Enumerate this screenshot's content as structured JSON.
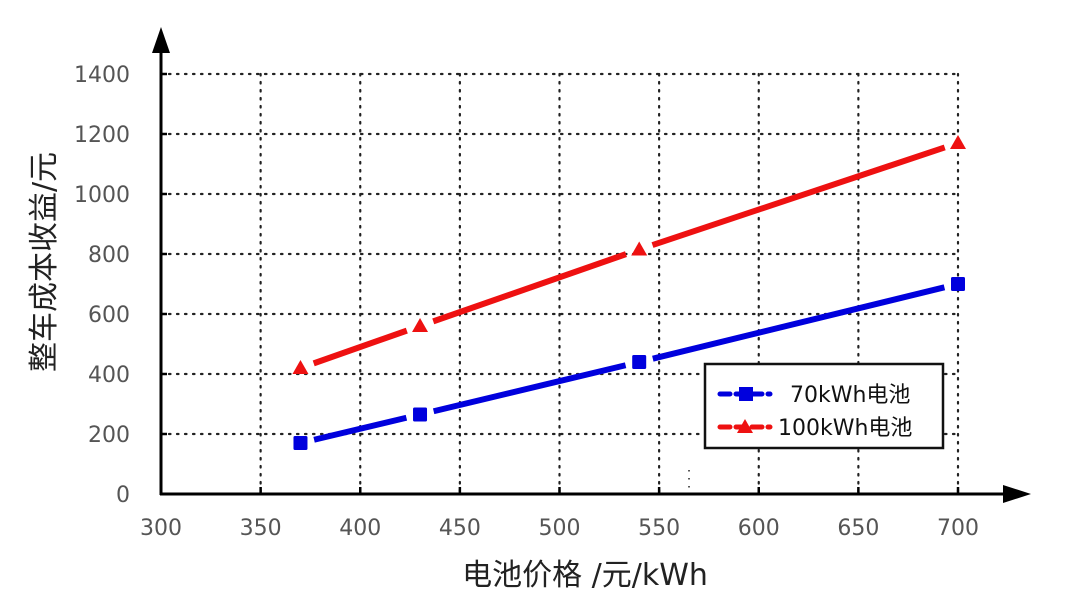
{
  "chart_data": {
    "type": "line",
    "title": "",
    "xlabel": "电池价格 /元/kWh",
    "ylabel": "整车成本收益/元",
    "xlim": [
      300,
      700
    ],
    "ylim": [
      0,
      1400
    ],
    "xticks": [
      300,
      350,
      400,
      450,
      500,
      550,
      600,
      650,
      700
    ],
    "yticks": [
      0,
      200,
      400,
      600,
      800,
      1000,
      1200,
      1400
    ],
    "grid": true,
    "grid_style": "dotted",
    "legend_position": "lower right",
    "series": [
      {
        "name": "70kWh电池",
        "color": "#0000dd",
        "marker": "square",
        "x": [
          370,
          430,
          540,
          700
        ],
        "y": [
          170,
          265,
          440,
          700
        ]
      },
      {
        "name": "100kWh电池",
        "color": "#ee1111",
        "marker": "triangle",
        "x": [
          370,
          430,
          540,
          700
        ],
        "y": [
          420,
          560,
          815,
          1170
        ]
      }
    ]
  },
  "legend": {
    "items": [
      {
        "label": "70kWh电池"
      },
      {
        "label": "100kWh电池"
      }
    ]
  }
}
